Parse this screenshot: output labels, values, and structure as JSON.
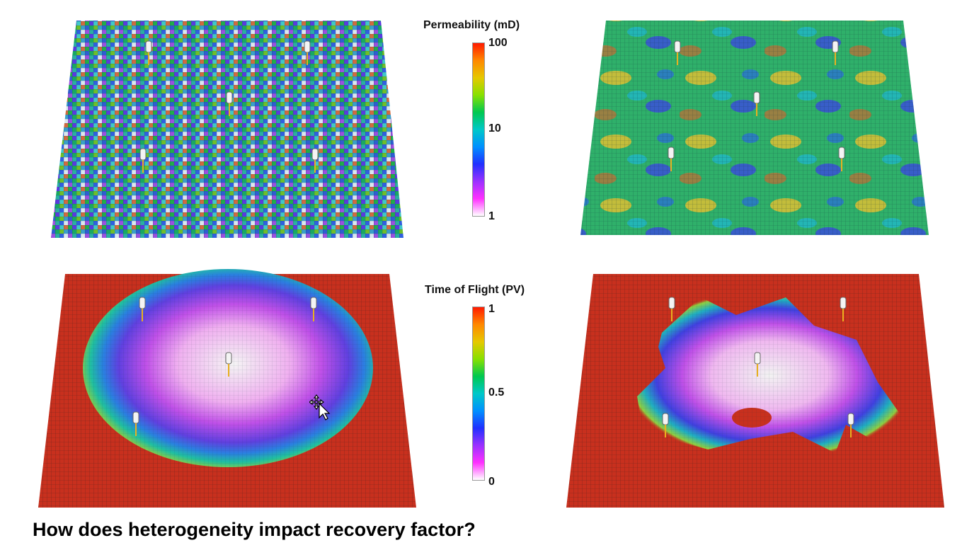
{
  "permeability_colorbar": {
    "title": "Permeability (mD)",
    "ticks": [
      "100",
      "10",
      "1"
    ],
    "scale": "log"
  },
  "tof_colorbar": {
    "title": "Time of Flight (PV)",
    "ticks": [
      "1",
      "0.5",
      "0"
    ],
    "scale": "linear"
  },
  "question": "How does heterogeneity impact recovery factor?",
  "colors": {
    "background": "#ffffff",
    "tof_far": "#c8301e",
    "grid_line": "#7a1a10"
  },
  "icons": {
    "well": "well-marker-icon",
    "cursor": "move-cursor-icon"
  }
}
